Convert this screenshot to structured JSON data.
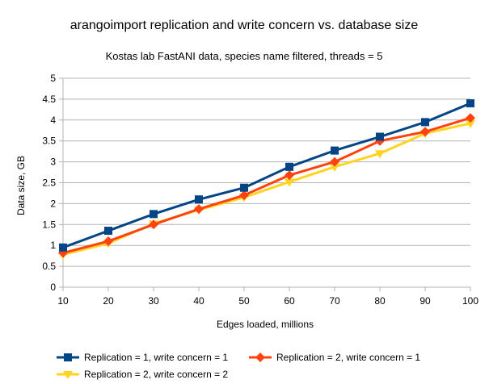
{
  "chart_data": {
    "type": "line",
    "title": "arangoimport replication and write concern vs. database size",
    "subtitle": "Kostas lab FastANI data, species name filtered, threads = 5",
    "xlabel": "Edges loaded, millions",
    "ylabel": "Data size, GB",
    "x": [
      10,
      20,
      30,
      40,
      50,
      60,
      70,
      80,
      90,
      100
    ],
    "xlim": [
      10,
      100
    ],
    "ylim": [
      0,
      5
    ],
    "y_ticks": [
      0,
      0.5,
      1,
      1.5,
      2,
      2.5,
      3,
      3.5,
      4,
      4.5,
      5
    ],
    "grid": "horizontal",
    "legend_position": "bottom",
    "series": [
      {
        "name": "Replication = 1, write concern = 1",
        "color": "#004586",
        "marker": "square",
        "values": [
          0.95,
          1.35,
          1.75,
          2.1,
          2.38,
          2.88,
          3.27,
          3.6,
          3.95,
          4.4
        ]
      },
      {
        "name": "Replication = 2, write concern = 1",
        "color": "#ff420e",
        "marker": "diamond",
        "values": [
          0.82,
          1.1,
          1.5,
          1.87,
          2.2,
          2.68,
          3.0,
          3.5,
          3.72,
          4.05
        ]
      },
      {
        "name": "Replication = 2, write concern = 2",
        "color": "#ffd320",
        "marker": "triangle-down",
        "values": [
          0.78,
          1.05,
          1.52,
          1.85,
          2.15,
          2.52,
          2.88,
          3.2,
          3.68,
          3.92
        ]
      }
    ]
  }
}
